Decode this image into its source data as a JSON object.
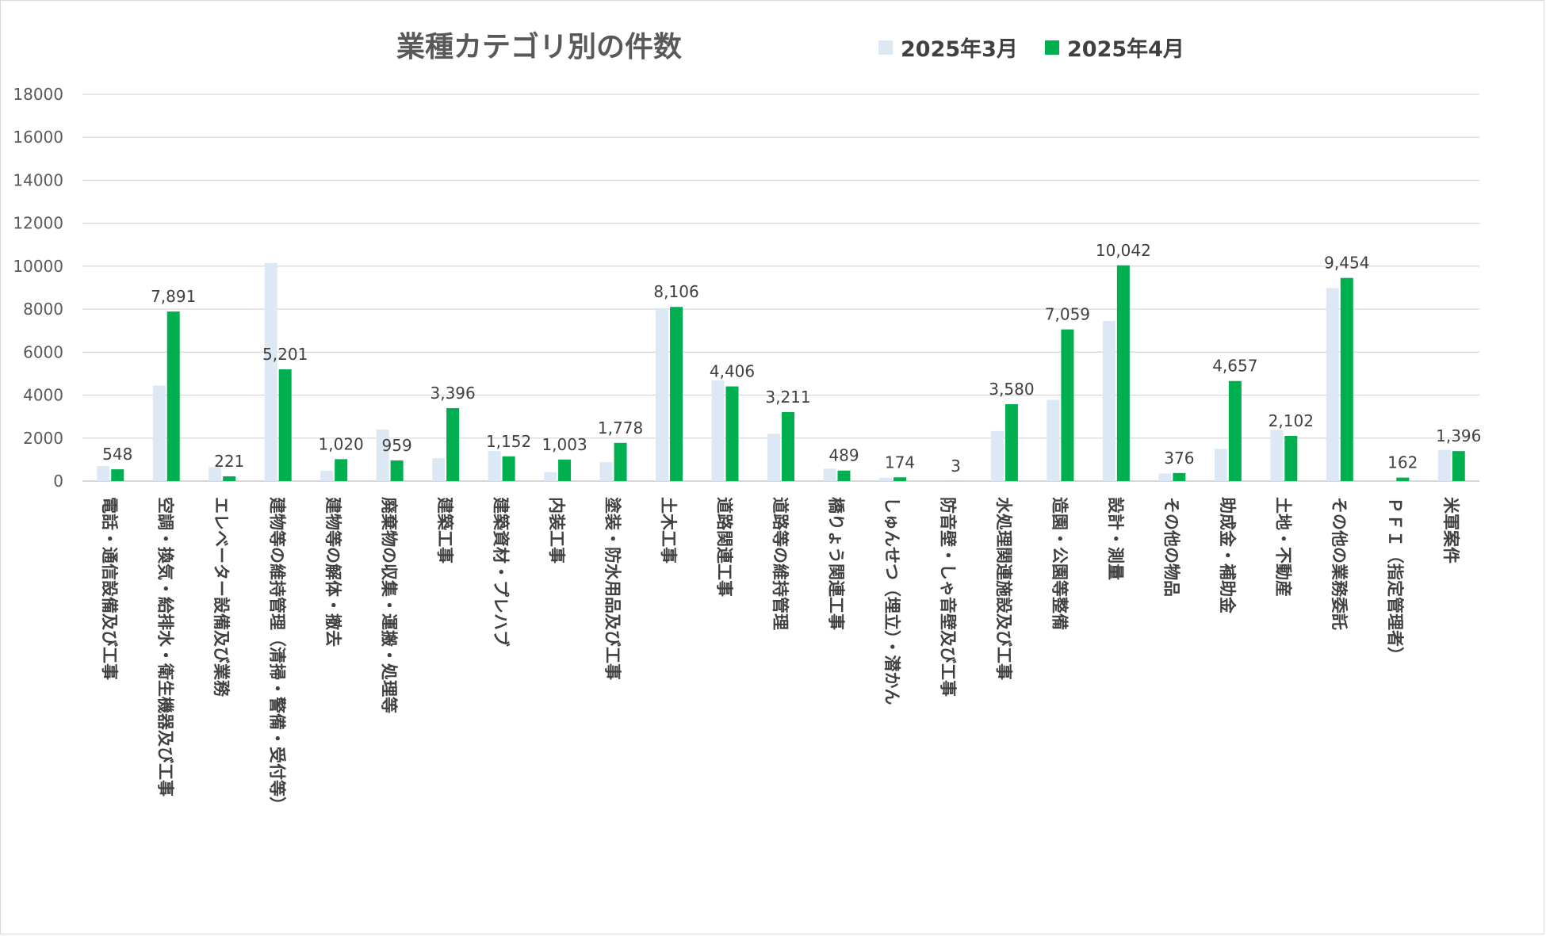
{
  "chart_data": {
    "type": "bar",
    "title": "業種カテゴリ別の件数",
    "xlabel": "",
    "ylabel": "",
    "ylim": [
      0,
      18000
    ],
    "yticks": [
      "0",
      "2000",
      "4000",
      "6000",
      "8000",
      "10000",
      "12000",
      "14000",
      "16000",
      "18000"
    ],
    "grid": true,
    "legend_position": "top",
    "categories": [
      "電話・通信設備及び工事",
      "空調・換気・給排水・衛生機器及び工事",
      "エレベーター設備及び業務",
      "建物等の維持管理（清掃・警備・受付等）",
      "建物等の解体・撤去",
      "廃棄物の収集・運搬・処理等",
      "建築工事",
      "建築資材・プレハブ",
      "内装工事",
      "塗装・防水用品及び工事",
      "土木工事",
      "道路関連工事",
      "道路等の維持管理",
      "橋りょう関連工事",
      "しゅんせつ（埋立）・潜かん",
      "防音壁・しゃ音壁及び工事",
      "水処理関連施設及び工事",
      "造園・公園等整備",
      "設計・測量",
      "その他の物品",
      "助成金・補助金",
      "土地・不動産",
      "その他の業務委託",
      "ＰＦＩ（指定管理者）",
      "米軍案件"
    ],
    "series": [
      {
        "name": "2025年3月",
        "color": "#dde8f5",
        "values": [
          700,
          4450,
          650,
          10150,
          480,
          2400,
          1060,
          1400,
          420,
          880,
          8050,
          4680,
          2200,
          580,
          160,
          0,
          2330,
          3780,
          7450,
          350,
          1500,
          2370,
          8980,
          0,
          1450
        ]
      },
      {
        "name": "2025年4月",
        "color": "#00b050",
        "values": [
          548,
          7891,
          221,
          5201,
          1020,
          959,
          3396,
          1152,
          1003,
          1778,
          8106,
          4406,
          3211,
          489,
          174,
          3,
          3580,
          7059,
          10042,
          376,
          4657,
          2102,
          9454,
          162,
          1396
        ],
        "labels": [
          "548",
          "7,891",
          "221",
          "5,201",
          "1,020",
          "959",
          "3,396",
          "1,152",
          "1,003",
          "1,778",
          "8,106",
          "4,406",
          "3,211",
          "489",
          "174",
          "3",
          "3,580",
          "7,059",
          "10,042",
          "376",
          "4,657",
          "2,102",
          "9,454",
          "162",
          "1,396"
        ]
      }
    ]
  }
}
